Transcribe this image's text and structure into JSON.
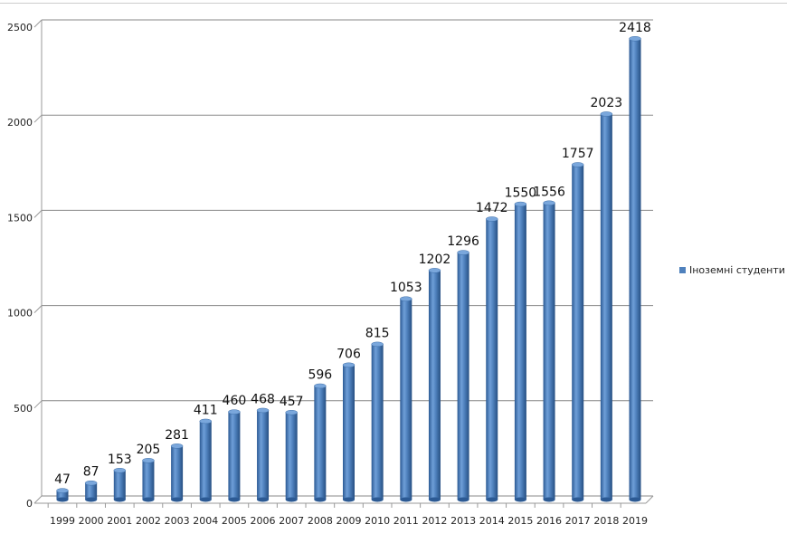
{
  "chart_data": {
    "type": "bar",
    "style": "3d-cylinder",
    "title": "",
    "xlabel": "",
    "ylabel": "",
    "ylim": [
      0,
      2500
    ],
    "yticks": [
      0,
      500,
      1000,
      1500,
      2000,
      2500
    ],
    "grid": true,
    "legend_position": "right",
    "categories": [
      "1999",
      "2000",
      "2001",
      "2002",
      "2003",
      "2004",
      "2005",
      "2006",
      "2007",
      "2008",
      "2009",
      "2010",
      "2011",
      "2012",
      "2013",
      "2014",
      "2015",
      "2016",
      "2017",
      "2018",
      "2019"
    ],
    "series": [
      {
        "name": "Іноземні студенти",
        "color": "#4f81bd",
        "values": [
          47,
          87,
          153,
          205,
          281,
          411,
          460,
          468,
          457,
          596,
          706,
          815,
          1053,
          1202,
          1296,
          1472,
          1550,
          1556,
          1757,
          2023,
          2418
        ]
      }
    ]
  }
}
